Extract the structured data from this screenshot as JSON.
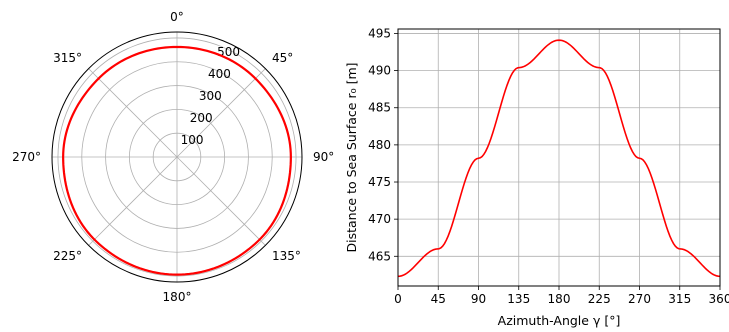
{
  "chart_data": [
    {
      "type": "polar-line",
      "title": "",
      "theta_direction": "clockwise",
      "theta_zero": "top",
      "theta_tick_labels": [
        "0°",
        "45°",
        "90°",
        "135°",
        "180°",
        "225°",
        "270°",
        "315°"
      ],
      "r_ticks": [
        100,
        200,
        300,
        400,
        500
      ],
      "r_tick_labels": [
        "100",
        "200",
        "300",
        "400",
        "500"
      ],
      "rlim": [
        0,
        525
      ],
      "grid": true,
      "series_color": "#ff0000",
      "theta_deg": [
        0,
        45,
        90,
        135,
        180,
        225,
        270,
        315,
        360
      ],
      "r": [
        462.3,
        466.0,
        478.2,
        490.4,
        494.1,
        490.4,
        478.2,
        466.0,
        462.3
      ]
    },
    {
      "type": "line",
      "title": "",
      "xlabel": "Azimuth-Angle γ [°]",
      "ylabel": "Distance to Sea Surface r₀ [m]",
      "xlim": [
        0,
        360
      ],
      "ylim": [
        461,
        495.6
      ],
      "xticks": [
        0,
        45,
        90,
        135,
        180,
        225,
        270,
        315,
        360
      ],
      "xtick_labels": [
        "0",
        "45",
        "90",
        "135",
        "180",
        "225",
        "270",
        "315",
        "360"
      ],
      "yticks": [
        465,
        470,
        475,
        480,
        485,
        490,
        495
      ],
      "ytick_labels": [
        "465",
        "470",
        "475",
        "480",
        "485",
        "490",
        "495"
      ],
      "grid": true,
      "series_color": "#ff0000",
      "x": [
        0,
        45,
        90,
        135,
        180,
        225,
        270,
        315,
        360
      ],
      "y": [
        462.3,
        466.0,
        478.2,
        490.4,
        494.1,
        490.4,
        478.2,
        466.0,
        462.3
      ]
    }
  ]
}
